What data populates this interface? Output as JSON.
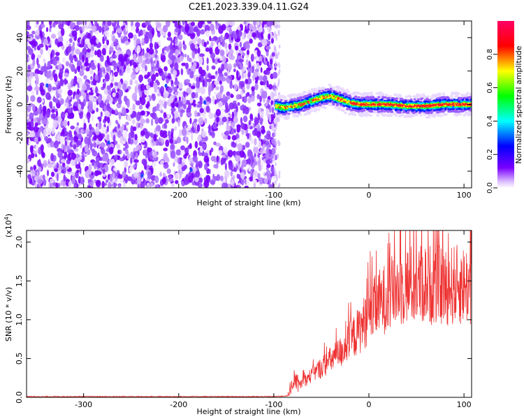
{
  "figure_title": "C2E1.2023.339.04.11.G24",
  "chart_data": [
    {
      "type": "heatmap",
      "title": "",
      "xlabel": "Height of straight line (km)",
      "ylabel": "Frequency (Hz)",
      "xlim": [
        -360,
        108
      ],
      "ylim": [
        -50,
        50
      ],
      "xticks": [
        -300,
        -200,
        -100,
        0,
        100
      ],
      "yticks": [
        -40,
        -20,
        0,
        20,
        40
      ],
      "xtick_labels": [
        "-300",
        "-200",
        "-100",
        "0",
        "100"
      ],
      "ytick_labels": [
        "-40",
        "-20",
        "0",
        "20",
        "40"
      ],
      "noise_region_x": [
        -360,
        -98
      ],
      "signal_region_x": [
        -98,
        108
      ],
      "signal_track": {
        "x": [
          -98,
          -90,
          -80,
          -70,
          -60,
          -50,
          -40,
          -30,
          -20,
          -10,
          0,
          10,
          20,
          40,
          60,
          80,
          100,
          108
        ],
        "frequency": [
          -1,
          -2,
          -1,
          0,
          2,
          4,
          5,
          3,
          1,
          0,
          0,
          0,
          0,
          -1,
          -1,
          0,
          0,
          0
        ]
      },
      "colorbar": {
        "label": "Normalized spectral amplitude",
        "range": [
          0,
          1
        ],
        "ticks": [
          0.0,
          0.2,
          0.4,
          0.6,
          0.8
        ],
        "tick_labels": [
          "0.0",
          "0.2",
          "0.4",
          "0.6",
          "0.8"
        ],
        "colormap": [
          "#ffffff",
          "#7a00ff",
          "#0000ff",
          "#00ffff",
          "#00ff00",
          "#ffff00",
          "#ff0000",
          "#ff0066"
        ]
      }
    },
    {
      "type": "line",
      "title": "",
      "xlabel": "Height of straight line (km)",
      "ylabel": "SNR (10 * v/v)",
      "scale_note_base": "(x10",
      "scale_note_exp": "4",
      "scale_note_close": ")",
      "xlim": [
        -360,
        108
      ],
      "ylim": [
        0,
        2.15
      ],
      "xticks": [
        -300,
        -200,
        -100,
        0,
        100
      ],
      "yticks": [
        0.0,
        0.5,
        1.0,
        1.5,
        2.0
      ],
      "xtick_labels": [
        "-300",
        "-200",
        "-100",
        "0",
        "100"
      ],
      "ytick_labels": [
        "0.0",
        "0.5",
        "1.0",
        "1.5",
        "2.0"
      ],
      "color": "#ee3333",
      "series": [
        {
          "x": [
            -360,
            -300,
            -250,
            -200,
            -150,
            -100,
            -85,
            -80,
            -78,
            -75,
            -70,
            -60,
            -50,
            -40,
            -30,
            -20,
            -10,
            0,
            10,
            20,
            30,
            40,
            50,
            60,
            70,
            80,
            90,
            100,
            108
          ],
          "values": [
            0.01,
            0.01,
            0.01,
            0.01,
            0.01,
            0.01,
            0.02,
            0.1,
            0.25,
            0.15,
            0.2,
            0.3,
            0.4,
            0.5,
            0.6,
            0.75,
            0.9,
            1.1,
            1.25,
            1.35,
            1.45,
            1.5,
            1.5,
            1.52,
            1.5,
            1.48,
            1.5,
            1.5,
            1.5
          ]
        }
      ]
    }
  ]
}
